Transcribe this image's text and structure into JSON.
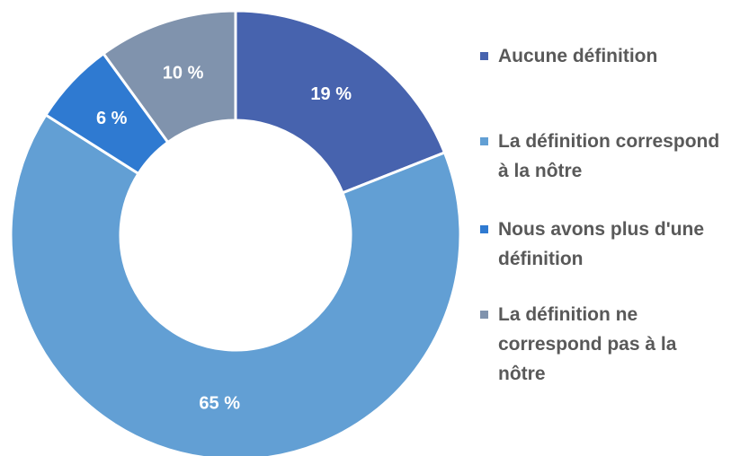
{
  "chart_data": {
    "type": "donut",
    "categories": [
      "Aucune définition",
      "La définition correspond à la nôtre",
      "Nous avons plus d'une définition",
      "La définition ne correspond pas à la nôtre"
    ],
    "values": [
      19,
      65,
      6,
      10
    ],
    "value_labels": [
      "19 %",
      "65 %",
      "6 %",
      "10 %"
    ],
    "colors": [
      "#4763ae",
      "#629fd4",
      "#2f7ad1",
      "#8093ad"
    ],
    "legend": "right"
  }
}
